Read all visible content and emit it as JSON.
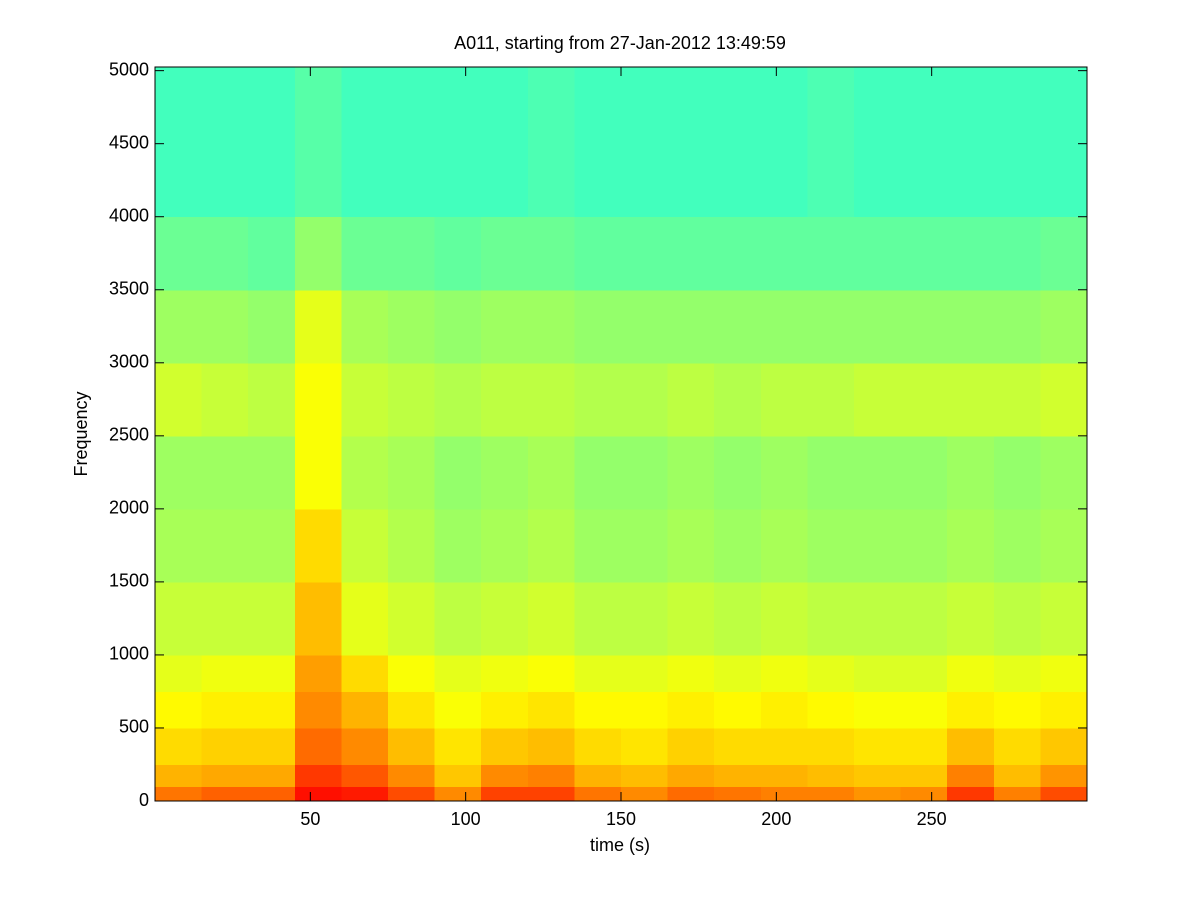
{
  "chart_data": {
    "type": "heatmap",
    "title": "A011, starting from 27-Jan-2012 13:49:59",
    "xlabel": "time (s)",
    "ylabel": "Frequency",
    "colormap": "jet",
    "clim": [
      0,
      1
    ],
    "xlim": [
      0,
      300
    ],
    "ylim": [
      0,
      5025
    ],
    "xticks": [
      50,
      100,
      150,
      200,
      250
    ],
    "yticks": [
      0,
      500,
      1000,
      1500,
      2000,
      2500,
      3000,
      3500,
      4000,
      4500,
      5000
    ],
    "x": [
      0,
      15,
      30,
      45,
      60,
      75,
      90,
      105,
      120,
      135,
      150,
      165,
      180,
      195,
      210,
      225,
      240,
      255,
      270,
      285,
      300
    ],
    "y": [
      0,
      100,
      250,
      500,
      750,
      1000,
      1500,
      2000,
      2500,
      3000,
      3500,
      4000,
      5025
    ],
    "z": [
      [
        0.76,
        0.78,
        0.78,
        0.86,
        0.85,
        0.8,
        0.74,
        0.81,
        0.81,
        0.76,
        0.74,
        0.77,
        0.76,
        0.75,
        0.75,
        0.73,
        0.74,
        0.82,
        0.75,
        0.8
      ],
      [
        0.7,
        0.71,
        0.71,
        0.82,
        0.79,
        0.74,
        0.68,
        0.74,
        0.75,
        0.7,
        0.69,
        0.71,
        0.7,
        0.7,
        0.69,
        0.68,
        0.68,
        0.75,
        0.69,
        0.73
      ],
      [
        0.66,
        0.67,
        0.67,
        0.77,
        0.74,
        0.69,
        0.65,
        0.68,
        0.69,
        0.66,
        0.65,
        0.67,
        0.66,
        0.66,
        0.66,
        0.65,
        0.65,
        0.69,
        0.66,
        0.68
      ],
      [
        0.63,
        0.64,
        0.64,
        0.74,
        0.7,
        0.65,
        0.62,
        0.64,
        0.65,
        0.63,
        0.63,
        0.64,
        0.63,
        0.64,
        0.63,
        0.62,
        0.62,
        0.64,
        0.63,
        0.64
      ],
      [
        0.6,
        0.61,
        0.61,
        0.72,
        0.66,
        0.62,
        0.6,
        0.61,
        0.62,
        0.6,
        0.6,
        0.61,
        0.6,
        0.61,
        0.6,
        0.59,
        0.59,
        0.61,
        0.6,
        0.61
      ],
      [
        0.57,
        0.57,
        0.57,
        0.69,
        0.6,
        0.58,
        0.56,
        0.57,
        0.58,
        0.56,
        0.56,
        0.57,
        0.56,
        0.57,
        0.56,
        0.56,
        0.56,
        0.57,
        0.56,
        0.57
      ],
      [
        0.54,
        0.54,
        0.54,
        0.66,
        0.57,
        0.55,
        0.53,
        0.54,
        0.55,
        0.53,
        0.53,
        0.54,
        0.53,
        0.54,
        0.53,
        0.53,
        0.53,
        0.54,
        0.53,
        0.54
      ],
      [
        0.53,
        0.53,
        0.53,
        0.62,
        0.55,
        0.54,
        0.52,
        0.53,
        0.54,
        0.52,
        0.52,
        0.53,
        0.52,
        0.53,
        0.52,
        0.52,
        0.52,
        0.53,
        0.52,
        0.53
      ],
      [
        0.58,
        0.57,
        0.56,
        0.62,
        0.57,
        0.56,
        0.55,
        0.56,
        0.56,
        0.55,
        0.55,
        0.56,
        0.55,
        0.56,
        0.56,
        0.57,
        0.57,
        0.57,
        0.57,
        0.58
      ],
      [
        0.53,
        0.53,
        0.52,
        0.6,
        0.54,
        0.53,
        0.52,
        0.53,
        0.53,
        0.52,
        0.52,
        0.52,
        0.52,
        0.52,
        0.52,
        0.52,
        0.52,
        0.52,
        0.52,
        0.53
      ],
      [
        0.48,
        0.48,
        0.47,
        0.52,
        0.48,
        0.48,
        0.47,
        0.48,
        0.48,
        0.47,
        0.47,
        0.47,
        0.47,
        0.47,
        0.47,
        0.47,
        0.47,
        0.47,
        0.47,
        0.48
      ],
      [
        0.44,
        0.44,
        0.44,
        0.46,
        0.44,
        0.44,
        0.44,
        0.44,
        0.45,
        0.44,
        0.44,
        0.44,
        0.44,
        0.44,
        0.45,
        0.44,
        0.44,
        0.44,
        0.44,
        0.44
      ]
    ]
  }
}
